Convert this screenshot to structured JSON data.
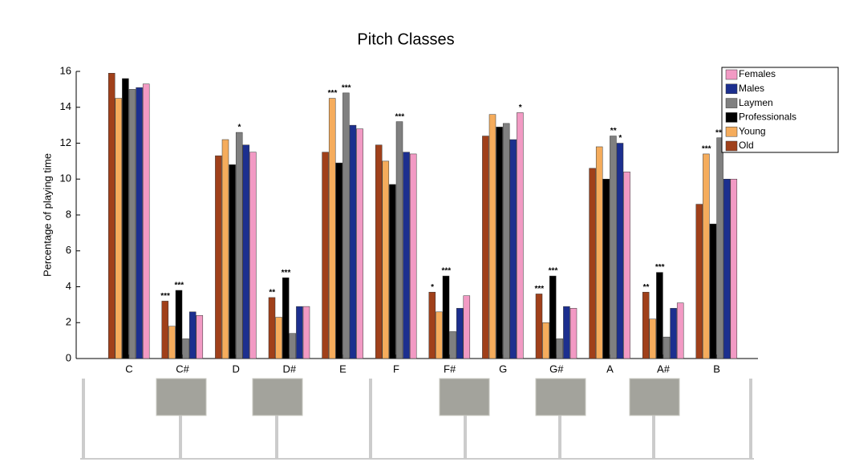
{
  "chart_data": {
    "type": "bar",
    "title": "Pitch Classes",
    "y_label": "Percentage of playing time",
    "categories": [
      "C",
      "C#",
      "D",
      "D#",
      "E",
      "F",
      "F#",
      "G",
      "G#",
      "A",
      "A#",
      "B"
    ],
    "ylim": [
      0,
      16
    ],
    "yticks": [
      0,
      2,
      4,
      6,
      8,
      10,
      12,
      14,
      16
    ],
    "legend": "upper right",
    "series": [
      {
        "name": "Old",
        "color": "#a0401a",
        "values": [
          15.9,
          3.2,
          11.3,
          3.4,
          11.5,
          11.9,
          3.7,
          12.4,
          3.6,
          10.6,
          3.7,
          8.6
        ],
        "significance": [
          null,
          "***",
          null,
          "**",
          null,
          null,
          "*",
          null,
          "***",
          null,
          "**",
          null
        ]
      },
      {
        "name": "Young",
        "color": "#f5ac5c",
        "values": [
          14.5,
          1.8,
          12.2,
          2.3,
          14.5,
          11.0,
          2.6,
          13.6,
          2.0,
          11.8,
          2.2,
          11.4
        ],
        "significance": [
          null,
          null,
          null,
          null,
          "***",
          null,
          null,
          null,
          null,
          null,
          null,
          "***"
        ]
      },
      {
        "name": "Professionals",
        "color": "#000000",
        "values": [
          15.6,
          3.8,
          10.8,
          4.5,
          10.9,
          9.7,
          4.6,
          12.9,
          4.6,
          10.0,
          4.8,
          7.5
        ],
        "significance": [
          null,
          "***",
          null,
          "***",
          null,
          null,
          "***",
          null,
          "***",
          null,
          "***",
          null
        ]
      },
      {
        "name": "Laymen",
        "color": "#808080",
        "values": [
          15.0,
          1.1,
          12.6,
          1.4,
          14.8,
          13.2,
          1.5,
          13.1,
          1.1,
          12.4,
          1.2,
          12.3
        ],
        "significance": [
          null,
          null,
          "*",
          null,
          "***",
          "***",
          null,
          null,
          null,
          "**",
          null,
          "***"
        ]
      },
      {
        "name": "Males",
        "color": "#1c2f8f",
        "values": [
          15.1,
          2.6,
          11.9,
          2.9,
          13.0,
          11.5,
          2.8,
          12.2,
          2.9,
          12.0,
          2.8,
          10.0
        ],
        "significance": [
          null,
          null,
          null,
          null,
          null,
          null,
          null,
          null,
          null,
          "*",
          null,
          null
        ]
      },
      {
        "name": "Females",
        "color": "#f29ac4",
        "values": [
          15.3,
          2.4,
          11.5,
          2.9,
          12.8,
          11.4,
          3.5,
          13.7,
          2.8,
          10.4,
          3.1,
          10.0
        ],
        "significance": [
          null,
          null,
          null,
          null,
          null,
          null,
          null,
          "*",
          null,
          null,
          null,
          null
        ]
      }
    ]
  }
}
